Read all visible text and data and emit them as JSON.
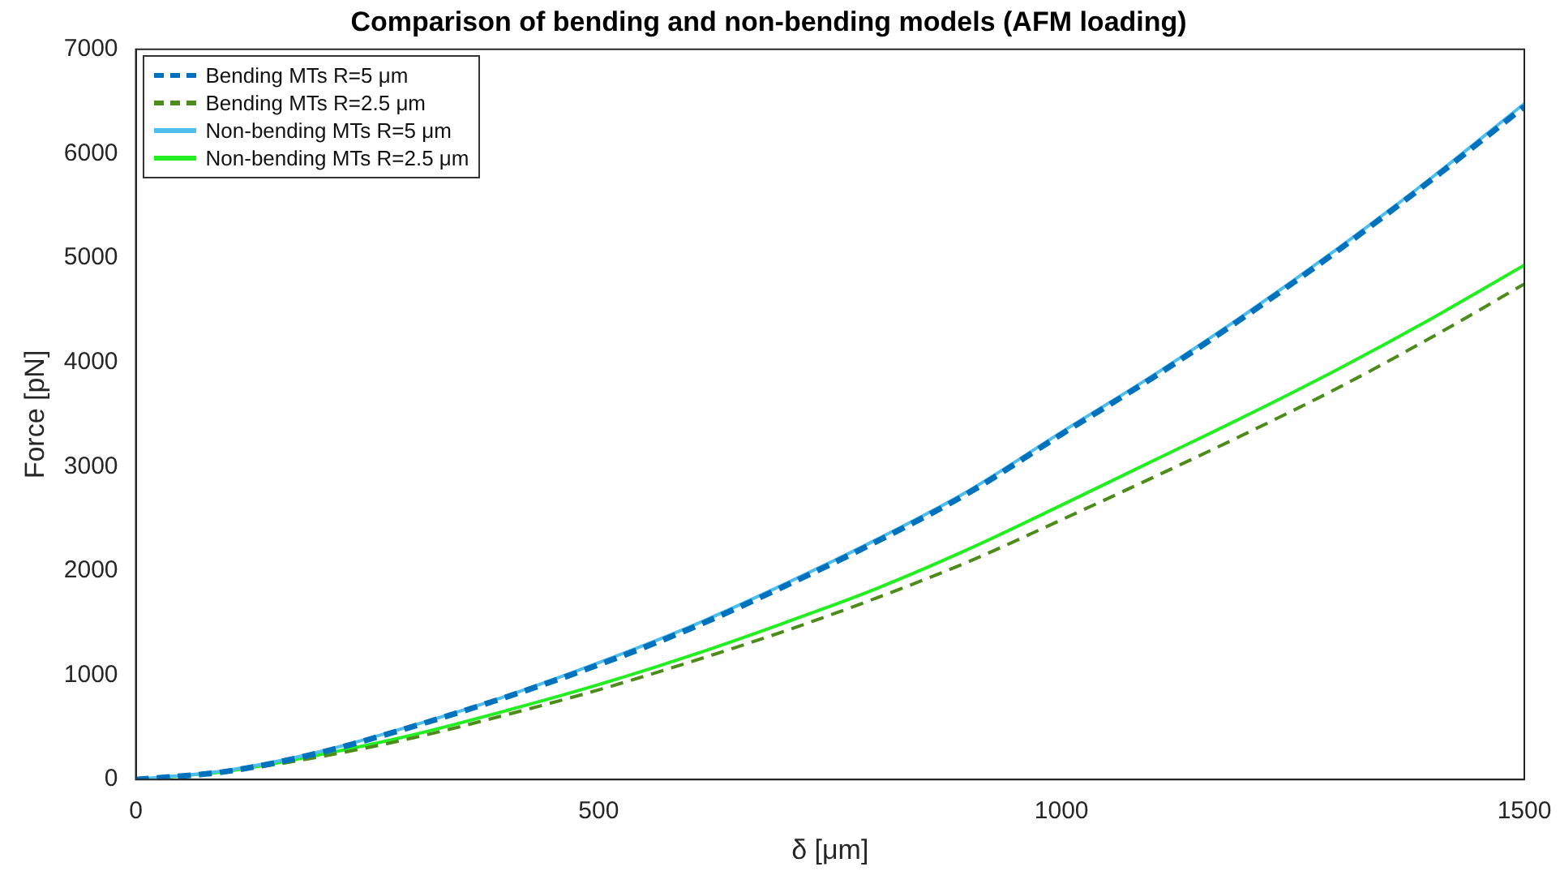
{
  "chart_data": {
    "type": "line",
    "title": "Comparison of bending and non-bending models (AFM loading)",
    "xlabel": "δ [μm]",
    "ylabel": "Force [pN]",
    "x": [
      0,
      100,
      200,
      300,
      400,
      500,
      600,
      700,
      800,
      900,
      1000,
      1100,
      1200,
      1300,
      1400,
      1500
    ],
    "series": [
      {
        "name": "Bending MTs R=5 μm",
        "color": "#0072bd",
        "line_style": "dashed",
        "values": [
          0,
          80,
          260,
          510,
          790,
          1100,
          1450,
          1850,
          2280,
          2750,
          3310,
          3860,
          4450,
          5080,
          5750,
          6450
        ]
      },
      {
        "name": "Bending MTs R=2.5 μm",
        "color": "#4d8c1a",
        "line_style": "dashed",
        "values": [
          0,
          80,
          220,
          400,
          620,
          860,
          1130,
          1420,
          1740,
          2090,
          2490,
          2900,
          3320,
          3760,
          4240,
          4750
        ]
      },
      {
        "name": "Non-bending MTs R=5 μm",
        "color": "#4dbeee",
        "line_style": "solid",
        "values": [
          0,
          90,
          270,
          520,
          800,
          1120,
          1470,
          1870,
          2300,
          2770,
          3330,
          3880,
          4470,
          5100,
          5770,
          6480
        ]
      },
      {
        "name": "Non-bending MTs R=2.5 μm",
        "color": "#22ee22",
        "line_style": "solid",
        "values": [
          0,
          80,
          240,
          430,
          660,
          910,
          1190,
          1500,
          1830,
          2210,
          2630,
          3060,
          3490,
          3940,
          4420,
          4930
        ]
      }
    ],
    "xlim": [
      0,
      1500
    ],
    "xticks": [
      0,
      500,
      1000,
      1500
    ],
    "ylim": [
      0,
      7000
    ],
    "yticks": [
      0,
      1000,
      2000,
      3000,
      4000,
      5000,
      6000,
      7000
    ],
    "grid": false,
    "legend": "top left",
    "marker": "none"
  }
}
